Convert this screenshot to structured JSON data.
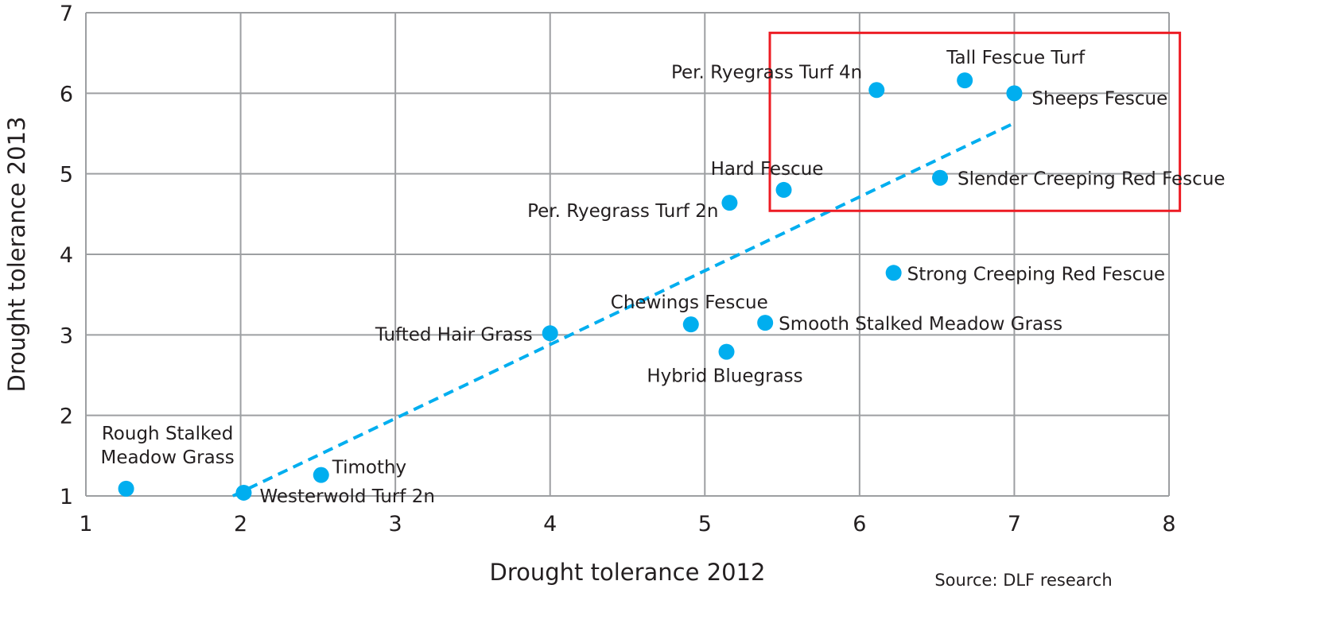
{
  "chart_data": {
    "type": "scatter",
    "title": "",
    "xlabel": "Drought tolerance 2012",
    "ylabel": "Drought tolerance 2013",
    "xlim": [
      1,
      8
    ],
    "ylim": [
      1,
      7
    ],
    "xticks": [
      1,
      2,
      3,
      4,
      5,
      6,
      7,
      8
    ],
    "yticks": [
      1,
      2,
      3,
      4,
      5,
      6,
      7
    ],
    "grid": true,
    "point_color": "#00aeef",
    "trendline": {
      "style": "dashed",
      "color": "#00aeef",
      "x": [
        1.95,
        7.0
      ],
      "y": [
        1.0,
        5.63
      ]
    },
    "highlight_box": {
      "color": "#ed1c24",
      "x": [
        5.42,
        8.07
      ],
      "y": [
        4.54,
        6.75
      ]
    },
    "points": [
      {
        "name": "Rough Stalked Meadow Grass",
        "label_lines": [
          "Rough Stalked",
          "Meadow Grass"
        ],
        "x": 1.26,
        "y": 1.09
      },
      {
        "name": "Westerwold Turf 2n",
        "x": 2.02,
        "y": 1.04
      },
      {
        "name": "Timothy",
        "x": 2.52,
        "y": 1.26
      },
      {
        "name": "Tufted Hair Grass",
        "x": 4.0,
        "y": 3.02
      },
      {
        "name": "Chewings Fescue",
        "x": 4.91,
        "y": 3.13
      },
      {
        "name": "Hybrid Bluegrass",
        "x": 5.14,
        "y": 2.79
      },
      {
        "name": "Smooth Stalked Meadow Grass",
        "x": 5.39,
        "y": 3.15
      },
      {
        "name": "Strong Creeping Red Fescue",
        "x": 6.22,
        "y": 3.77
      },
      {
        "name": "Per. Ryegrass Turf 2n",
        "x": 5.16,
        "y": 4.64
      },
      {
        "name": "Hard Fescue",
        "x": 5.51,
        "y": 4.8
      },
      {
        "name": "Slender Creeping Red Fescue",
        "x": 6.52,
        "y": 4.95
      },
      {
        "name": "Per. Ryegrass Turf 4n",
        "x": 6.11,
        "y": 6.04
      },
      {
        "name": "Tall Fescue Turf",
        "x": 6.68,
        "y": 6.16
      },
      {
        "name": "Sheeps Fescue",
        "x": 7.0,
        "y": 6.0
      }
    ],
    "source": "Source: DLF research"
  }
}
